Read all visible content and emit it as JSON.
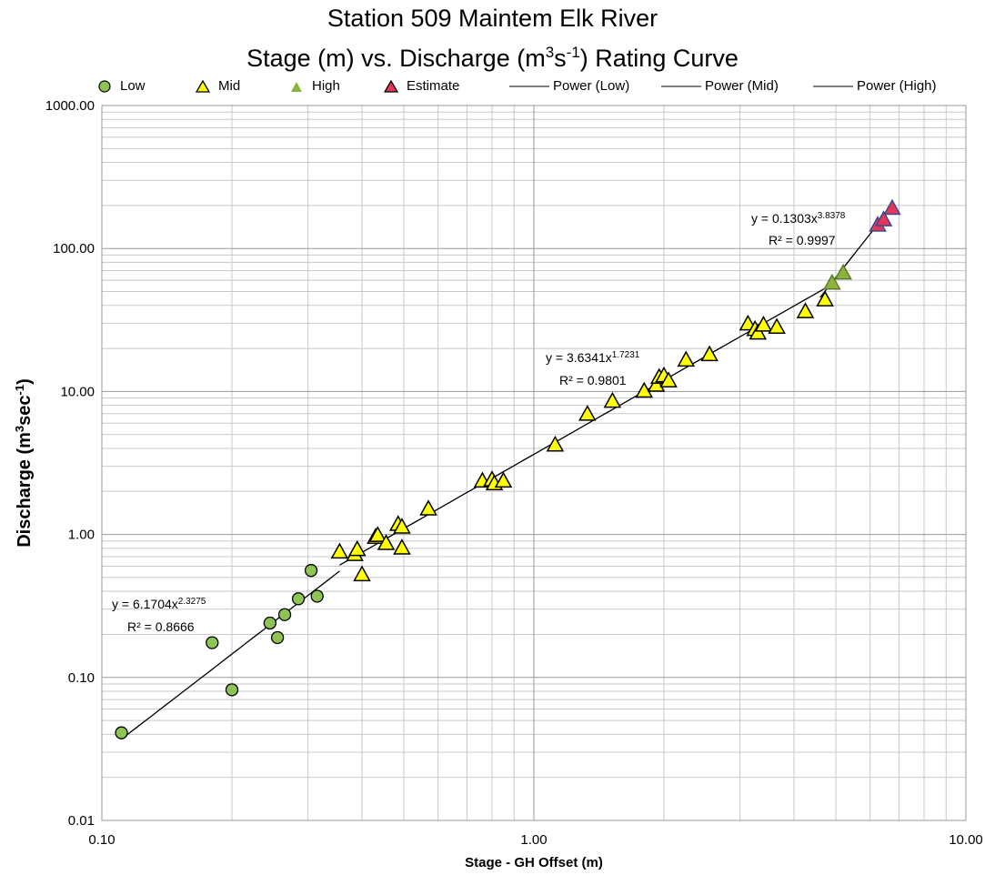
{
  "chart_data": {
    "type": "scatter",
    "title_line1": "Station 509 Maintem Elk River",
    "title_line2_pre": "Stage (m) vs. Discharge (m",
    "title_line2_sup1": "3",
    "title_line2_mid": "s",
    "title_line2_sup2": "-1",
    "title_line2_post": ") Rating Curve",
    "xlabel": "Stage - GH Offset (m)",
    "ylabel_pre": "Discharge (m",
    "ylabel_sup1": "3",
    "ylabel_mid": "sec",
    "ylabel_sup2": "-1",
    "ylabel_post": ")",
    "x_scale": "log",
    "y_scale": "log",
    "xlim": [
      0.1,
      10
    ],
    "ylim": [
      0.01,
      1000
    ],
    "x_ticks": [
      "0.10",
      "1.00",
      "10.00"
    ],
    "y_ticks": [
      "1000.00",
      "100.00",
      "10.00",
      "1.00",
      "0.10",
      "0.01"
    ],
    "grid": true,
    "legend": {
      "placement": "top",
      "items": [
        {
          "label": "Low",
          "kind": "circle",
          "color": "#8dc453"
        },
        {
          "label": "Mid",
          "kind": "triangle",
          "color": "#ffff00"
        },
        {
          "label": "High",
          "kind": "triangle-plain",
          "color": "#8db33f"
        },
        {
          "label": "Estimate",
          "kind": "triangle",
          "color": "#e8365a"
        },
        {
          "label": "Power (Low)",
          "kind": "line",
          "color": "#000000"
        },
        {
          "label": "Power (Mid)",
          "kind": "line",
          "color": "#000000"
        },
        {
          "label": "Power (High)",
          "kind": "line",
          "color": "#000000"
        }
      ]
    },
    "series": [
      {
        "name": "Low",
        "marker": "circle",
        "color": "#8dc453",
        "points": [
          [
            0.111,
            0.041
          ],
          [
            0.18,
            0.175
          ],
          [
            0.2,
            0.082
          ],
          [
            0.245,
            0.24
          ],
          [
            0.255,
            0.19
          ],
          [
            0.265,
            0.275
          ],
          [
            0.285,
            0.355
          ],
          [
            0.305,
            0.56
          ],
          [
            0.315,
            0.37
          ]
        ]
      },
      {
        "name": "Mid",
        "marker": "triangle",
        "color": "#ffff00",
        "points": [
          [
            0.355,
            0.75
          ],
          [
            0.385,
            0.72
          ],
          [
            0.39,
            0.78
          ],
          [
            0.4,
            0.52
          ],
          [
            0.43,
            0.95
          ],
          [
            0.435,
            0.98
          ],
          [
            0.455,
            0.86
          ],
          [
            0.485,
            1.17
          ],
          [
            0.495,
            1.12
          ],
          [
            0.495,
            0.8
          ],
          [
            0.57,
            1.5
          ],
          [
            0.76,
            2.35
          ],
          [
            0.8,
            2.4
          ],
          [
            0.81,
            2.25
          ],
          [
            0.85,
            2.35
          ],
          [
            1.12,
            4.2
          ],
          [
            1.33,
            6.9
          ],
          [
            1.52,
            8.5
          ],
          [
            1.8,
            10.0
          ],
          [
            1.92,
            11.0
          ],
          [
            1.95,
            12.5
          ],
          [
            2.0,
            12.8
          ],
          [
            2.05,
            11.8
          ],
          [
            2.25,
            16.5
          ],
          [
            2.55,
            18.0
          ],
          [
            3.13,
            29.5
          ],
          [
            3.25,
            27.0
          ],
          [
            3.3,
            25.5
          ],
          [
            3.4,
            29.0
          ],
          [
            3.65,
            28.0
          ],
          [
            4.25,
            36.0
          ],
          [
            4.72,
            43.5
          ]
        ]
      },
      {
        "name": "High",
        "marker": "triangle-plain",
        "color": "#8db33f",
        "points": [
          [
            4.9,
            57.0
          ],
          [
            5.2,
            67.0
          ]
        ]
      },
      {
        "name": "Estimate",
        "marker": "triangle",
        "color": "#e8365a",
        "points": [
          [
            6.25,
            145.0
          ],
          [
            6.45,
            158.0
          ],
          [
            6.75,
            190.0
          ]
        ]
      }
    ],
    "trendlines": [
      {
        "name": "Power (Low)",
        "a": 6.1704,
        "b": 2.3275,
        "x_range": [
          0.111,
          0.355
        ]
      },
      {
        "name": "Power (Mid)",
        "a": 3.6341,
        "b": 1.7231,
        "x_range": [
          0.355,
          4.9
        ]
      },
      {
        "name": "Power (High)",
        "a": 0.1303,
        "b": 3.8378,
        "x_range": [
          4.6,
          6.75
        ]
      }
    ],
    "annotations": [
      {
        "eq_pre": "y = 6.1704x",
        "eq_exp": "2.3275",
        "r2": "R² = 0.8666"
      },
      {
        "eq_pre": "y = 3.6341x",
        "eq_exp": "1.7231",
        "r2": "R² = 0.9801"
      },
      {
        "eq_pre": "y = 0.1303x",
        "eq_exp": "3.8378",
        "r2": "R² = 0.9997"
      }
    ]
  }
}
